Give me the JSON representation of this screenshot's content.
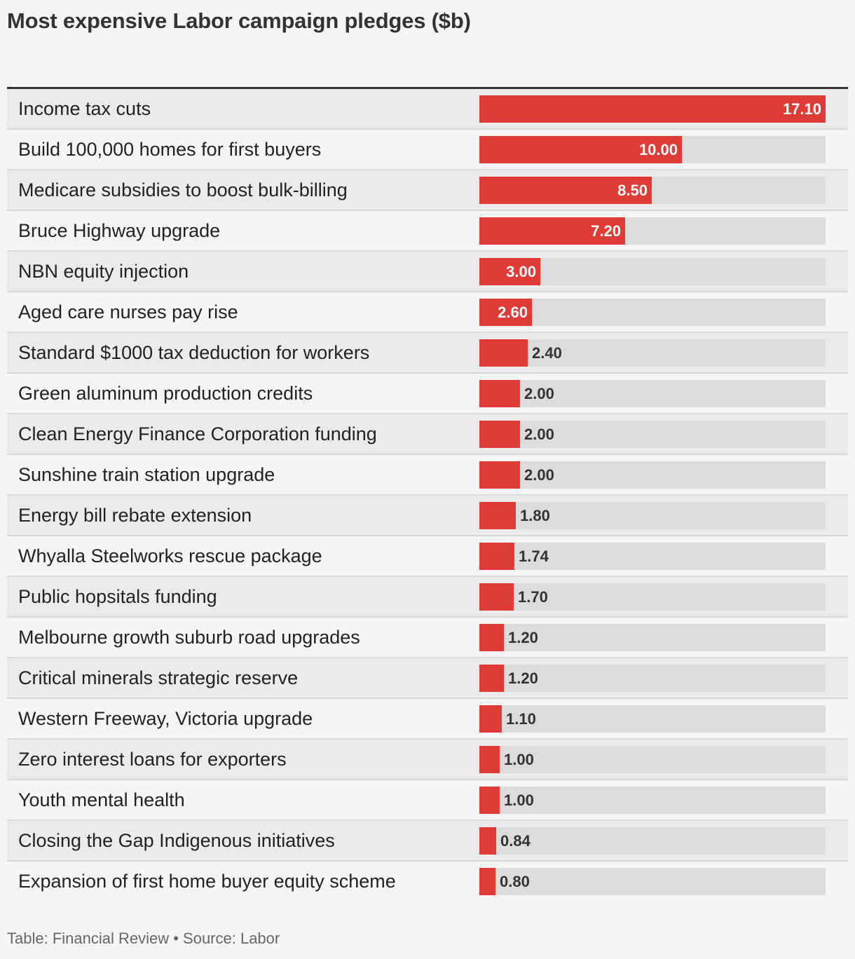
{
  "chart_data": {
    "type": "bar",
    "orientation": "horizontal",
    "title": "Most expensive Labor campaign pledges ($b)",
    "categories": [
      "Income tax cuts",
      "Build 100,000 homes for first buyers",
      "Medicare subsidies to boost bulk-billing",
      "Bruce Highway upgrade",
      "NBN equity injection",
      "Aged care nurses pay rise",
      "Standard $1000 tax deduction for workers",
      "Green aluminum production credits",
      "Clean Energy Finance Corporation funding",
      "Sunshine train station upgrade",
      "Energy bill rebate extension",
      "Whyalla Steelworks rescue package",
      "Public hopsitals funding",
      "Melbourne growth suburb road upgrades",
      "Critical minerals strategic reserve",
      "Western Freeway, Victoria upgrade",
      "Zero interest loans for exporters",
      "Youth mental health",
      "Closing the Gap Indigenous initiatives",
      "Expansion of first home buyer equity scheme"
    ],
    "values": [
      17.1,
      10.0,
      8.5,
      7.2,
      3.0,
      2.6,
      2.4,
      2.0,
      2.0,
      2.0,
      1.8,
      1.74,
      1.7,
      1.2,
      1.2,
      1.1,
      1.0,
      1.0,
      0.84,
      0.8
    ],
    "value_labels": [
      "17.10",
      "10.00",
      "8.50",
      "7.20",
      "3.00",
      "2.60",
      "2.40",
      "2.00",
      "2.00",
      "2.00",
      "1.80",
      "1.74",
      "1.70",
      "1.20",
      "1.20",
      "1.10",
      "1.00",
      "1.00",
      "0.84",
      "0.80"
    ],
    "xlim": [
      0,
      17.1
    ],
    "grid": false,
    "legend": "none",
    "colors": {
      "bar": "#e03c37",
      "track": "#dcdcdc",
      "label_inside": "#ffffff",
      "label_outside": "#333333"
    }
  },
  "footer": "Table: Financial Review • Source: Labor"
}
